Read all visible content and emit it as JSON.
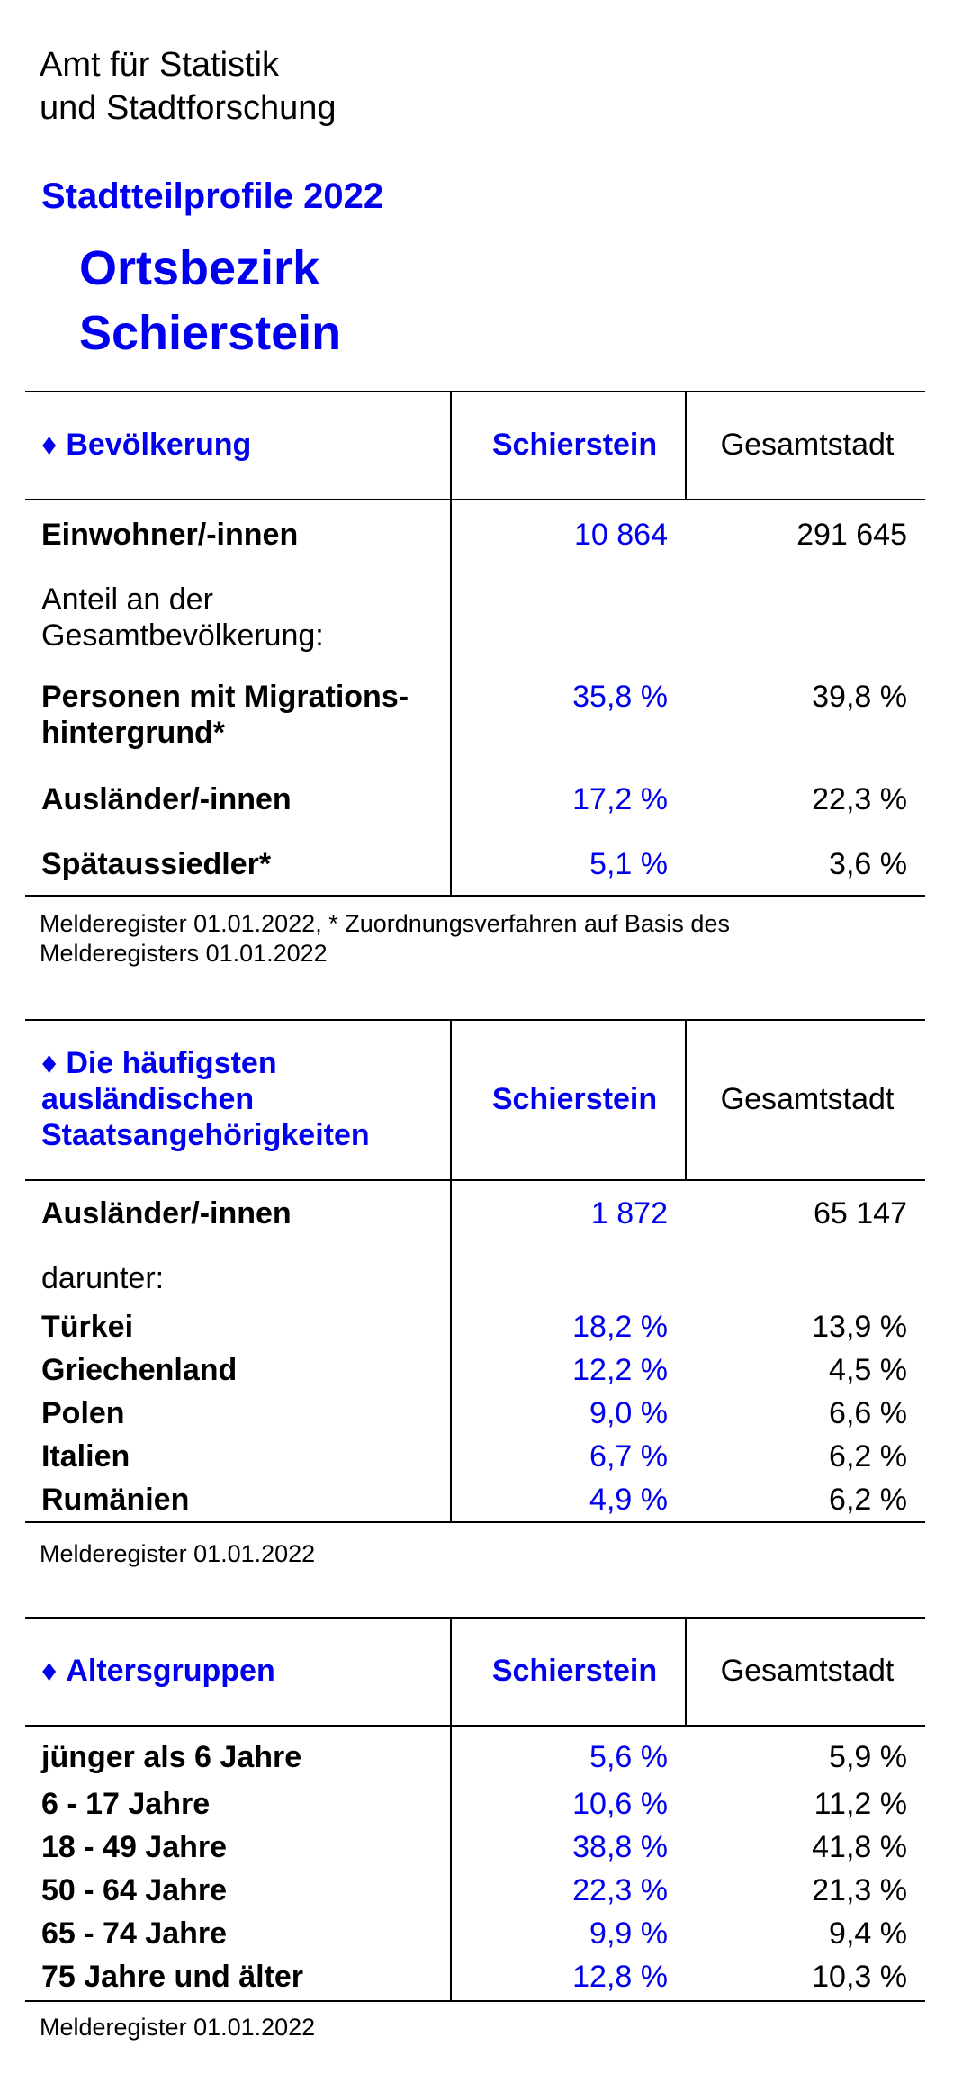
{
  "header": {
    "org_line1": "Amt für Statistik",
    "org_line2": "und Stadtforschung",
    "subtitle": "Stadtteilprofile 2022",
    "place_line1": "Ortsbezirk",
    "place_line2": "Schierstein"
  },
  "accent_color": "#0000ee",
  "bevoelkerung": {
    "title": "Bevölkerung",
    "col1": "Schierstein",
    "col2": "Gesamtstadt",
    "rows": [
      {
        "label": "Einwohner/-innen",
        "v1": "10 864",
        "v2": "291 645"
      },
      {
        "label": "Anteil an der Gesamtbevölkerung:",
        "v1": "",
        "v2": ""
      },
      {
        "label": "Personen mit Migrations-hintergrund*",
        "v1": "35,8 %",
        "v2": "39,8 %"
      },
      {
        "label": "Ausländer/-innen",
        "v1": "17,2 %",
        "v2": "22,3 %"
      },
      {
        "label": "Spätaussiedler*",
        "v1": "5,1 %",
        "v2": "3,6 %"
      }
    ],
    "note": "Melderegister 01.01.2022, * Zuordnungsverfahren auf Basis des Melderegisters 01.01.2022"
  },
  "staatsangehoerigkeiten": {
    "title": "Die häufigsten ausländischen Staatsangehörigkeiten",
    "col1": "Schierstein",
    "col2": "Gesamtstadt",
    "rows": [
      {
        "label": "Ausländer/-innen",
        "v1": "1 872",
        "v2": "65 147"
      },
      {
        "label": "darunter:",
        "v1": "",
        "v2": ""
      },
      {
        "label": "Türkei",
        "v1": "18,2 %",
        "v2": "13,9 %"
      },
      {
        "label": "Griechenland",
        "v1": "12,2 %",
        "v2": "4,5 %"
      },
      {
        "label": "Polen",
        "v1": "9,0 %",
        "v2": "6,6 %"
      },
      {
        "label": "Italien",
        "v1": "6,7 %",
        "v2": "6,2 %"
      },
      {
        "label": "Rumänien",
        "v1": "4,9 %",
        "v2": "6,2 %"
      }
    ],
    "note": "Melderegister 01.01.2022"
  },
  "altersgruppen": {
    "title": "Altersgruppen",
    "col1": "Schierstein",
    "col2": "Gesamtstadt",
    "rows": [
      {
        "label": "jünger als 6 Jahre",
        "v1": "5,6 %",
        "v2": "5,9 %"
      },
      {
        "label": "6 - 17 Jahre",
        "v1": "10,6 %",
        "v2": "11,2 %"
      },
      {
        "label": "18 - 49 Jahre",
        "v1": "38,8 %",
        "v2": "41,8 %"
      },
      {
        "label": "50 - 64 Jahre",
        "v1": "22,3 %",
        "v2": "21,3 %"
      },
      {
        "label": "65 - 74 Jahre",
        "v1": "9,9 %",
        "v2": "9,4 %"
      },
      {
        "label": "75 Jahre und älter",
        "v1": "12,8 %",
        "v2": "10,3 %"
      }
    ],
    "note": "Melderegister 01.01.2022"
  }
}
